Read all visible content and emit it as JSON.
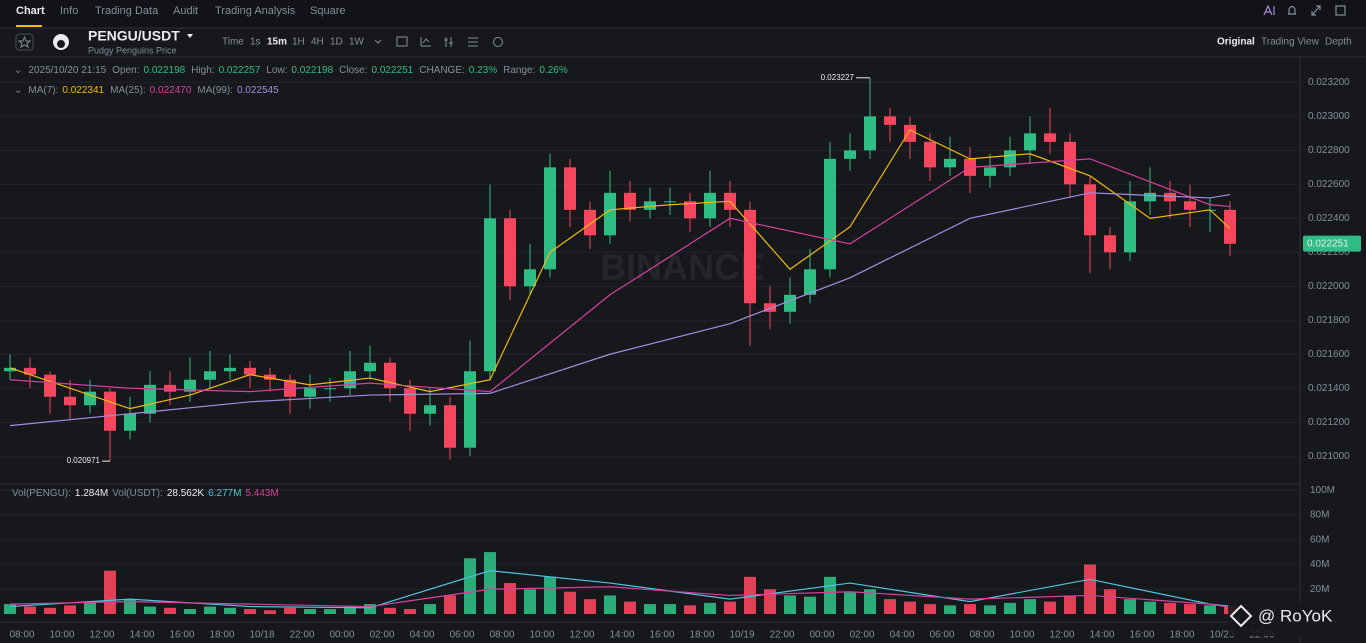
{
  "nav": {
    "tabs": [
      "Chart",
      "Info",
      "Trading Data",
      "Audit",
      "Trading Analysis",
      "Square"
    ]
  },
  "header": {
    "symbol": "PENGU/USDT",
    "subtitle": "Pudgy Penguins Price",
    "intervals": [
      "Time",
      "1s",
      "15m",
      "1H",
      "4H",
      "1D",
      "1W"
    ],
    "views": [
      "Original",
      "Trading View",
      "Depth"
    ]
  },
  "ohlc_legend": {
    "date": "2025/10/20 21:15",
    "items": [
      {
        "label": "Open:",
        "value": "0.022198"
      },
      {
        "label": "High:",
        "value": "0.022257"
      },
      {
        "label": "Low:",
        "value": "0.022198"
      },
      {
        "label": "Close:",
        "value": "0.022251"
      },
      {
        "label": "CHANGE:",
        "value": "0.23%"
      },
      {
        "label": "Range:",
        "value": "0.26%"
      }
    ]
  },
  "watermark": "BINANCE",
  "credit": "@ RoYoK",
  "chart_data": {
    "type": "candlestick",
    "ylim": [
      0.02086,
      0.02332
    ],
    "yticks": [
      {
        "value": 0.021,
        "label": "0.021000"
      },
      {
        "value": 0.0212,
        "label": "0.021200"
      },
      {
        "value": 0.0214,
        "label": "0.021400"
      },
      {
        "value": 0.0216,
        "label": "0.021600"
      },
      {
        "value": 0.0218,
        "label": "0.021800"
      },
      {
        "value": 0.022,
        "label": "0.022000"
      },
      {
        "value": 0.0222,
        "label": "0.022200"
      },
      {
        "value": 0.0224,
        "label": "0.022400"
      },
      {
        "value": 0.0226,
        "label": "0.022600"
      },
      {
        "value": 0.0228,
        "label": "0.022800"
      },
      {
        "value": 0.023,
        "label": "0.023000"
      },
      {
        "value": 0.0232,
        "label": "0.023200"
      }
    ],
    "grid": true,
    "up_color": "#2ebd85",
    "down_color": "#f6465d",
    "open": [
      0.0215,
      0.02152,
      0.02148,
      0.02135,
      0.0213,
      0.02138,
      0.02115,
      0.02125,
      0.02142,
      0.02138,
      0.02145,
      0.0215,
      0.02152,
      0.02148,
      0.02145,
      0.02135,
      0.0214,
      0.0214,
      0.0215,
      0.02155,
      0.0214,
      0.02125,
      0.0213,
      0.02105,
      0.0215,
      0.0224,
      0.022,
      0.0221,
      0.0227,
      0.02245,
      0.0223,
      0.02255,
      0.02245,
      0.0225,
      0.0225,
      0.0224,
      0.02255,
      0.02245,
      0.0219,
      0.02185,
      0.02195,
      0.0221,
      0.02275,
      0.0228,
      0.023,
      0.02295,
      0.02285,
      0.0227,
      0.02275,
      0.02265,
      0.0227,
      0.0228,
      0.0229,
      0.02285,
      0.0226,
      0.0223,
      0.0222,
      0.0225,
      0.02255,
      0.0225,
      0.02245,
      0.02245
    ],
    "high": [
      0.0216,
      0.02158,
      0.0215,
      0.02145,
      0.02145,
      0.0214,
      0.02135,
      0.0215,
      0.0215,
      0.02158,
      0.02162,
      0.0216,
      0.02156,
      0.02152,
      0.02148,
      0.02148,
      0.02146,
      0.02162,
      0.02165,
      0.02158,
      0.02145,
      0.0214,
      0.02135,
      0.02168,
      0.0226,
      0.02245,
      0.02225,
      0.02278,
      0.02275,
      0.0225,
      0.02268,
      0.02262,
      0.02258,
      0.02258,
      0.02255,
      0.02268,
      0.02262,
      0.0225,
      0.022,
      0.02205,
      0.02222,
      0.02285,
      0.0229,
      0.023227,
      0.02305,
      0.023,
      0.0229,
      0.02288,
      0.02282,
      0.02278,
      0.02288,
      0.023,
      0.02305,
      0.0229,
      0.02265,
      0.02235,
      0.02262,
      0.0227,
      0.02262,
      0.0226,
      0.02252,
      0.0225
    ],
    "low": [
      0.02145,
      0.0214,
      0.02125,
      0.02122,
      0.02125,
      0.020971,
      0.0211,
      0.0212,
      0.0213,
      0.02132,
      0.0214,
      0.02145,
      0.0214,
      0.02138,
      0.02125,
      0.02128,
      0.02132,
      0.02136,
      0.02145,
      0.02132,
      0.02115,
      0.02118,
      0.02098,
      0.021,
      0.02145,
      0.02192,
      0.02195,
      0.02205,
      0.02235,
      0.02222,
      0.02225,
      0.02238,
      0.0224,
      0.02242,
      0.02232,
      0.02235,
      0.02235,
      0.02165,
      0.02175,
      0.02178,
      0.0219,
      0.02205,
      0.02268,
      0.02275,
      0.02285,
      0.02275,
      0.02262,
      0.02265,
      0.02255,
      0.02258,
      0.02265,
      0.02272,
      0.02278,
      0.02252,
      0.02208,
      0.0221,
      0.02215,
      0.02242,
      0.0224,
      0.02235,
      0.02232,
      0.02218
    ],
    "close": [
      0.02152,
      0.02148,
      0.02135,
      0.0213,
      0.02138,
      0.02115,
      0.02125,
      0.02142,
      0.02138,
      0.02145,
      0.0215,
      0.02152,
      0.02148,
      0.02145,
      0.02135,
      0.0214,
      0.0214,
      0.0215,
      0.02155,
      0.0214,
      0.02125,
      0.0213,
      0.02105,
      0.0215,
      0.0224,
      0.022,
      0.0221,
      0.0227,
      0.02245,
      0.0223,
      0.02255,
      0.02245,
      0.0225,
      0.0225,
      0.0224,
      0.02255,
      0.02245,
      0.0219,
      0.02185,
      0.02195,
      0.0221,
      0.02275,
      0.0228,
      0.023,
      0.02295,
      0.02285,
      0.0227,
      0.02275,
      0.02265,
      0.0227,
      0.0228,
      0.0229,
      0.02285,
      0.0226,
      0.0223,
      0.0222,
      0.0225,
      0.02255,
      0.0225,
      0.02245,
      0.02245,
      0.02225
    ],
    "series": [
      {
        "name": "MA(7):",
        "color": "#f0b90b",
        "last": "0.022341",
        "x": [
          0,
          3,
          6,
          9,
          12,
          15,
          18,
          21,
          24,
          27,
          30,
          33,
          36,
          39,
          42,
          45,
          48,
          51,
          54,
          57,
          60,
          61
        ],
        "values": [
          0.02152,
          0.0214,
          0.02128,
          0.02136,
          0.02148,
          0.02142,
          0.02146,
          0.02138,
          0.02145,
          0.0222,
          0.02245,
          0.02248,
          0.0225,
          0.0221,
          0.02235,
          0.02292,
          0.02275,
          0.02278,
          0.02265,
          0.0224,
          0.02245,
          0.02234
        ]
      },
      {
        "name": "MA(25):",
        "color": "#d6409f",
        "last": "0.022470",
        "x": [
          0,
          6,
          12,
          18,
          24,
          30,
          36,
          42,
          48,
          54,
          60,
          61
        ],
        "values": [
          0.02145,
          0.0214,
          0.02138,
          0.02143,
          0.02138,
          0.02195,
          0.0224,
          0.02225,
          0.0227,
          0.02275,
          0.02248,
          0.02247
        ]
      },
      {
        "name": "MA(99):",
        "color": "#a58be0",
        "last": "0.022545",
        "x": [
          0,
          6,
          12,
          18,
          24,
          30,
          36,
          42,
          48,
          54,
          60,
          61
        ],
        "values": [
          0.02118,
          0.02125,
          0.02132,
          0.02136,
          0.02137,
          0.0216,
          0.02178,
          0.02205,
          0.0224,
          0.02255,
          0.02252,
          0.02254
        ]
      }
    ],
    "current_price": 0.022251,
    "x_labels": [
      "08:00",
      "10:00",
      "12:00",
      "14:00",
      "16:00",
      "18:00",
      "10/18",
      "22:00",
      "00:00",
      "02:00",
      "04:00",
      "06:00",
      "08:00",
      "10:00",
      "12:00",
      "14:00",
      "16:00",
      "18:00",
      "10/19",
      "22:00",
      "00:00",
      "02:00",
      "04:00",
      "06:00",
      "08:00",
      "10:00",
      "12:00",
      "14:00",
      "16:00",
      "18:00",
      "10/20",
      "22:00"
    ],
    "volume": {
      "legend": [
        {
          "label": "Vol(PENGU):",
          "value": "1.284M"
        },
        {
          "label": "Vol(USDT):",
          "value": "28.562K"
        }
      ],
      "ylim": [
        0,
        105000000
      ],
      "yticks": [
        {
          "value": 20000000,
          "label": "20M"
        },
        {
          "value": 40000000,
          "label": "40M"
        },
        {
          "value": 60000000,
          "label": "60M"
        },
        {
          "value": 80000000,
          "label": "80M"
        },
        {
          "value": 100000000,
          "label": "100M"
        }
      ],
      "values": [
        8000000,
        6000000,
        5000000,
        7000000,
        10000000,
        35000000,
        12000000,
        6000000,
        5000000,
        4000000,
        6000000,
        5000000,
        4000000,
        3000000,
        5000000,
        4000000,
        4000000,
        6000000,
        8000000,
        5000000,
        4000000,
        8000000,
        15000000,
        45000000,
        50000000,
        25000000,
        20000000,
        30000000,
        18000000,
        12000000,
        15000000,
        10000000,
        8000000,
        8000000,
        7000000,
        9000000,
        10000000,
        30000000,
        20000000,
        15000000,
        14000000,
        30000000,
        18000000,
        20000000,
        12000000,
        10000000,
        8000000,
        7000000,
        8000000,
        7000000,
        9000000,
        12000000,
        10000000,
        15000000,
        40000000,
        20000000,
        12000000,
        10000000,
        9000000,
        8000000,
        7000000,
        6000000
      ],
      "series": [
        {
          "color": "#4fc3e0",
          "last": "6.277M",
          "x": [
            0,
            6,
            12,
            18,
            24,
            30,
            36,
            42,
            48,
            54,
            60,
            61
          ],
          "values": [
            6000000,
            12000000,
            6000000,
            5000000,
            35000000,
            25000000,
            12000000,
            25000000,
            10000000,
            28000000,
            8000000,
            6300000
          ]
        },
        {
          "color": "#d6409f",
          "last": "5.443M",
          "x": [
            0,
            6,
            12,
            18,
            24,
            30,
            36,
            42,
            48,
            54,
            60,
            61
          ],
          "values": [
            8000000,
            10000000,
            8000000,
            6000000,
            20000000,
            22000000,
            15000000,
            18000000,
            12000000,
            15000000,
            8000000,
            5400000
          ]
        }
      ]
    }
  }
}
